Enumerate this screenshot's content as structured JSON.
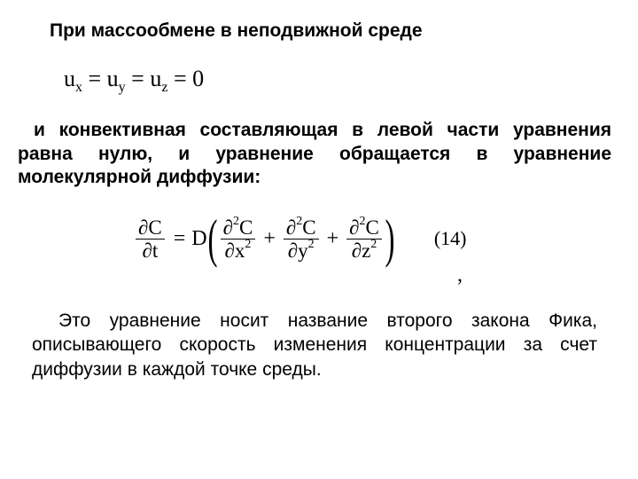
{
  "heading": "При массообмене в неподвижной среде",
  "eq1": {
    "u": "u",
    "x": "x",
    "y": "y",
    "z": "z",
    "eq": " = ",
    "zero": "0"
  },
  "para1_line1": "и конвективная составляющая в левой части уравнения",
  "para1_line2": "равна нулю, и уравнение обращается в уравнение молекулярной диффузии:",
  "eq2": {
    "partial": "∂",
    "C": "C",
    "t": "t",
    "eq": "=",
    "D": "D",
    "x": "x",
    "y": "y",
    "z": "z",
    "sup2": "2",
    "plus": "+",
    "lpar": "(",
    "rpar": ")",
    "comma": ","
  },
  "eqnum": "(14)",
  "para2": "Это уравнение носит название второго закона Фика, описывающего скорость изменения концентрации за счет диффузии в каждой точке среды.",
  "style": {
    "background": "#ffffff",
    "text_color": "#000000",
    "heading_fontsize": 21,
    "body_fontsize": 21,
    "eq_fontsize": 24,
    "font_body": "Arial",
    "font_math": "Times New Roman"
  }
}
